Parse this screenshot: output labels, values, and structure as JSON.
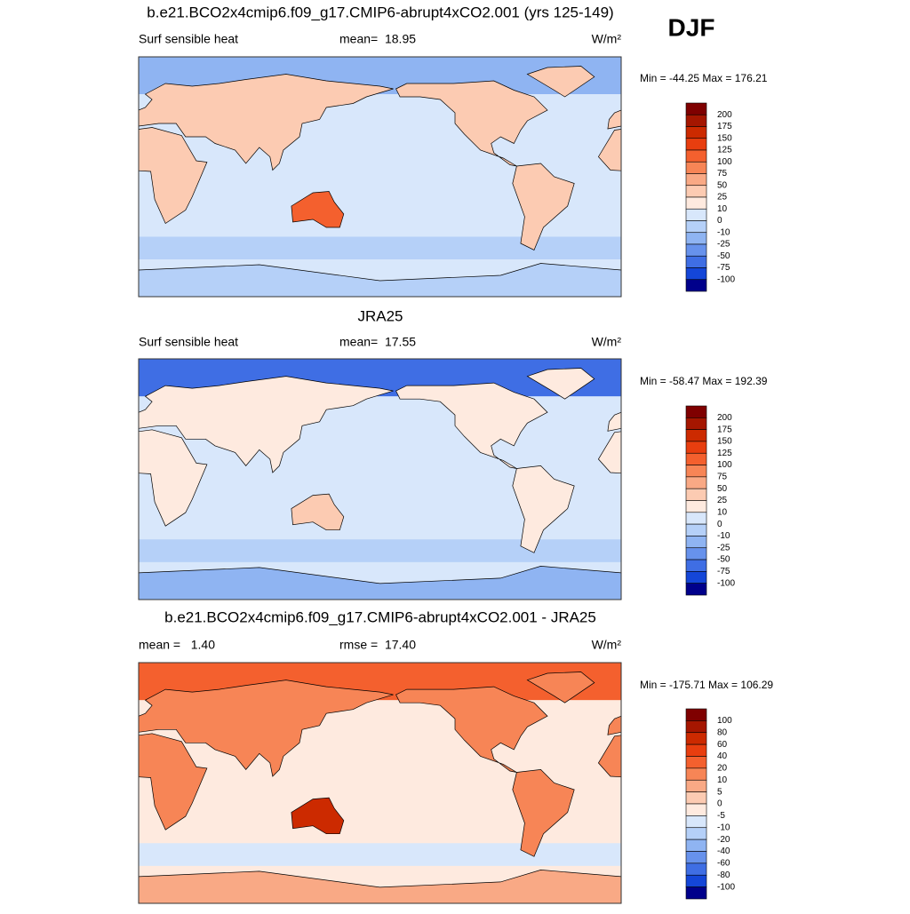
{
  "header": {
    "season": "DJF"
  },
  "colorbar_colors": [
    "#7f0000",
    "#a51600",
    "#cc2a00",
    "#e83e0f",
    "#f4602e",
    "#f78556",
    "#f9a985",
    "#fccbb2",
    "#feeadf",
    "#d8e7fb",
    "#b5d0f8",
    "#8fb4f2",
    "#6792ec",
    "#3f6ee4",
    "#1446d8",
    "#00008b"
  ],
  "panels": [
    {
      "title": "b.e21.BCO2x4cmip6.f09_g17.CMIP6-abrupt4xCO2.001 (yrs 125-149)",
      "left": "Surf sensible heat",
      "center": "mean=  18.95",
      "right": "W/m²",
      "range": "Min = -44.25 Max = 176.21",
      "colorbar": [
        "200",
        "175",
        "150",
        "125",
        "100",
        "75",
        "50",
        "25",
        "10",
        "0",
        "-10",
        "-25",
        "-50",
        "-75",
        "-100"
      ]
    },
    {
      "title": "JRA25",
      "left": "Surf sensible heat",
      "center": "mean=  17.55",
      "right": "W/m²",
      "range": "Min = -58.47 Max = 192.39",
      "colorbar": [
        "200",
        "175",
        "150",
        "125",
        "100",
        "75",
        "50",
        "25",
        "10",
        "0",
        "-10",
        "-25",
        "-50",
        "-75",
        "-100"
      ]
    },
    {
      "title": "b.e21.BCO2x4cmip6.f09_g17.CMIP6-abrupt4xCO2.001 - JRA25",
      "left": "mean =   1.40",
      "center": "rmse =  17.40",
      "right": "W/m²",
      "range": "Min = -175.71 Max = 106.29",
      "colorbar": [
        "100",
        "80",
        "60",
        "40",
        "20",
        "10",
        "5",
        "0",
        "-5",
        "-10",
        "-20",
        "-40",
        "-60",
        "-80",
        "-100"
      ]
    }
  ]
}
